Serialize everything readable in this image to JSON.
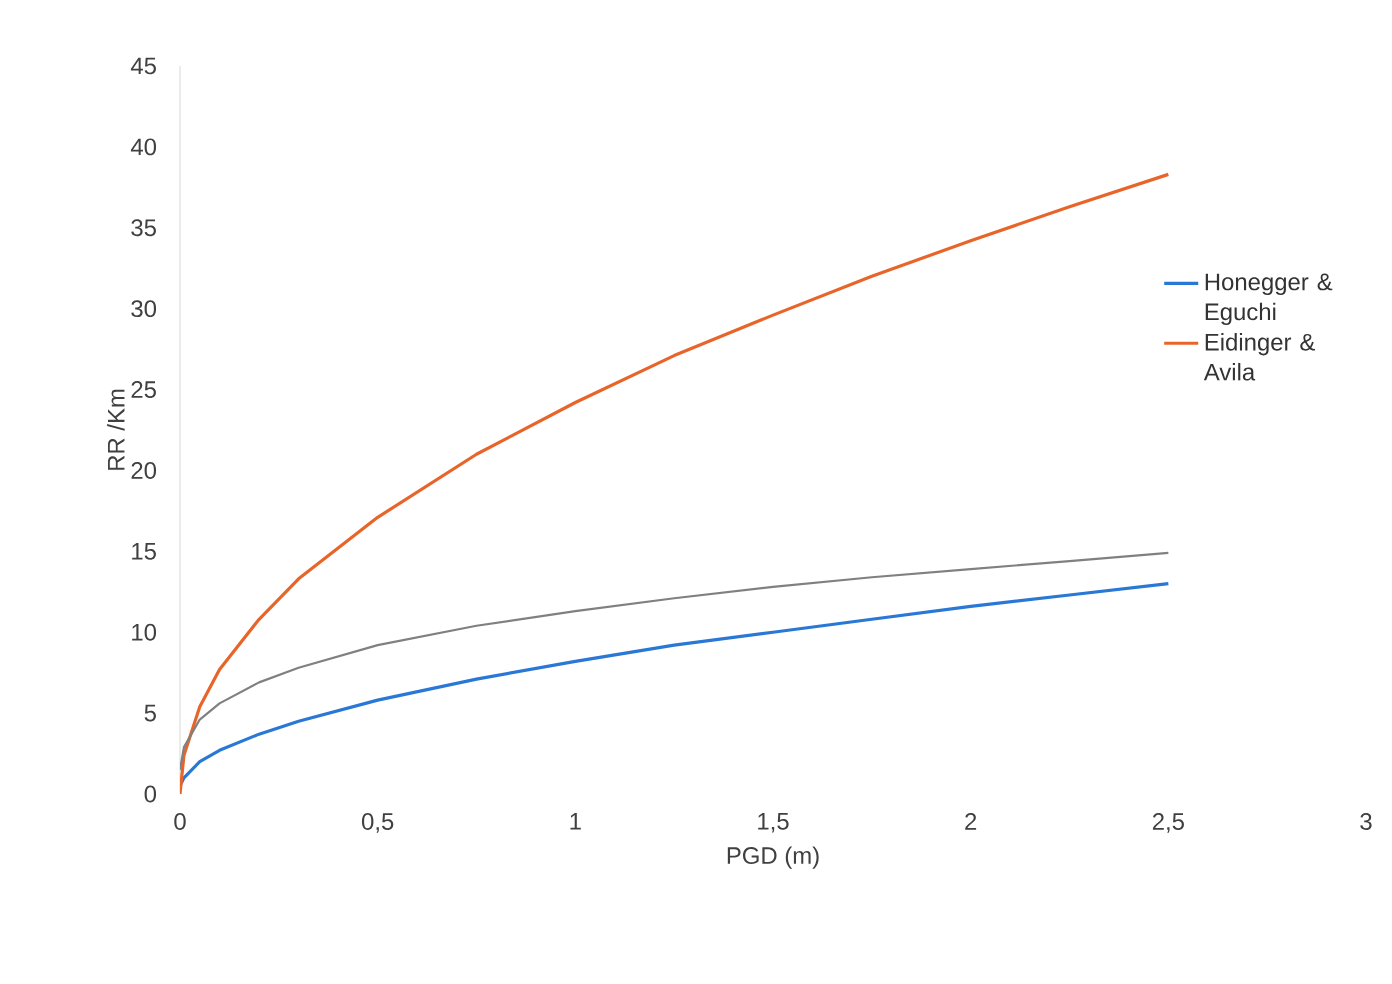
{
  "chart_data": {
    "type": "line",
    "xlabel": "PGD (m)",
    "ylabel": "RR /Km",
    "x": [
      0,
      0.01,
      0.05,
      0.1,
      0.2,
      0.3,
      0.5,
      0.75,
      1,
      1.25,
      1.5,
      1.75,
      2,
      2.25,
      2.5
    ],
    "series": [
      {
        "name": "Honegger & Eguchi",
        "color": "#2a78d6",
        "values": [
          0.5,
          1.0,
          2.0,
          2.7,
          3.7,
          4.5,
          5.8,
          7.1,
          8.2,
          9.2,
          10.0,
          10.8,
          11.6,
          12.3,
          13.0
        ]
      },
      {
        "name": "Eidinger & Avila",
        "color": "#e8652a",
        "values": [
          0,
          2.4,
          5.4,
          7.7,
          10.8,
          13.3,
          17.1,
          21.0,
          24.2,
          27.1,
          29.6,
          32.0,
          34.2,
          36.3,
          38.3
        ]
      },
      {
        "color": "#808080",
        "values": [
          1.5,
          2.9,
          4.6,
          5.6,
          6.9,
          7.8,
          9.2,
          10.4,
          11.3,
          12.1,
          12.8,
          13.4,
          13.9,
          14.4,
          14.9
        ]
      }
    ],
    "xlim": [
      0,
      3
    ],
    "ylim": [
      0,
      45
    ],
    "xticks": [
      0,
      {
        "value": 0.5,
        "label": "0,5"
      },
      1,
      {
        "value": 1.5,
        "label": "1,5"
      },
      2,
      {
        "value": 2.5,
        "label": "2,5"
      },
      3
    ],
    "yticks": [
      0,
      5,
      10,
      15,
      20,
      25,
      30,
      35,
      40,
      45
    ],
    "legend": "right",
    "marker": "none",
    "line_style": "solid",
    "grid": false
  }
}
